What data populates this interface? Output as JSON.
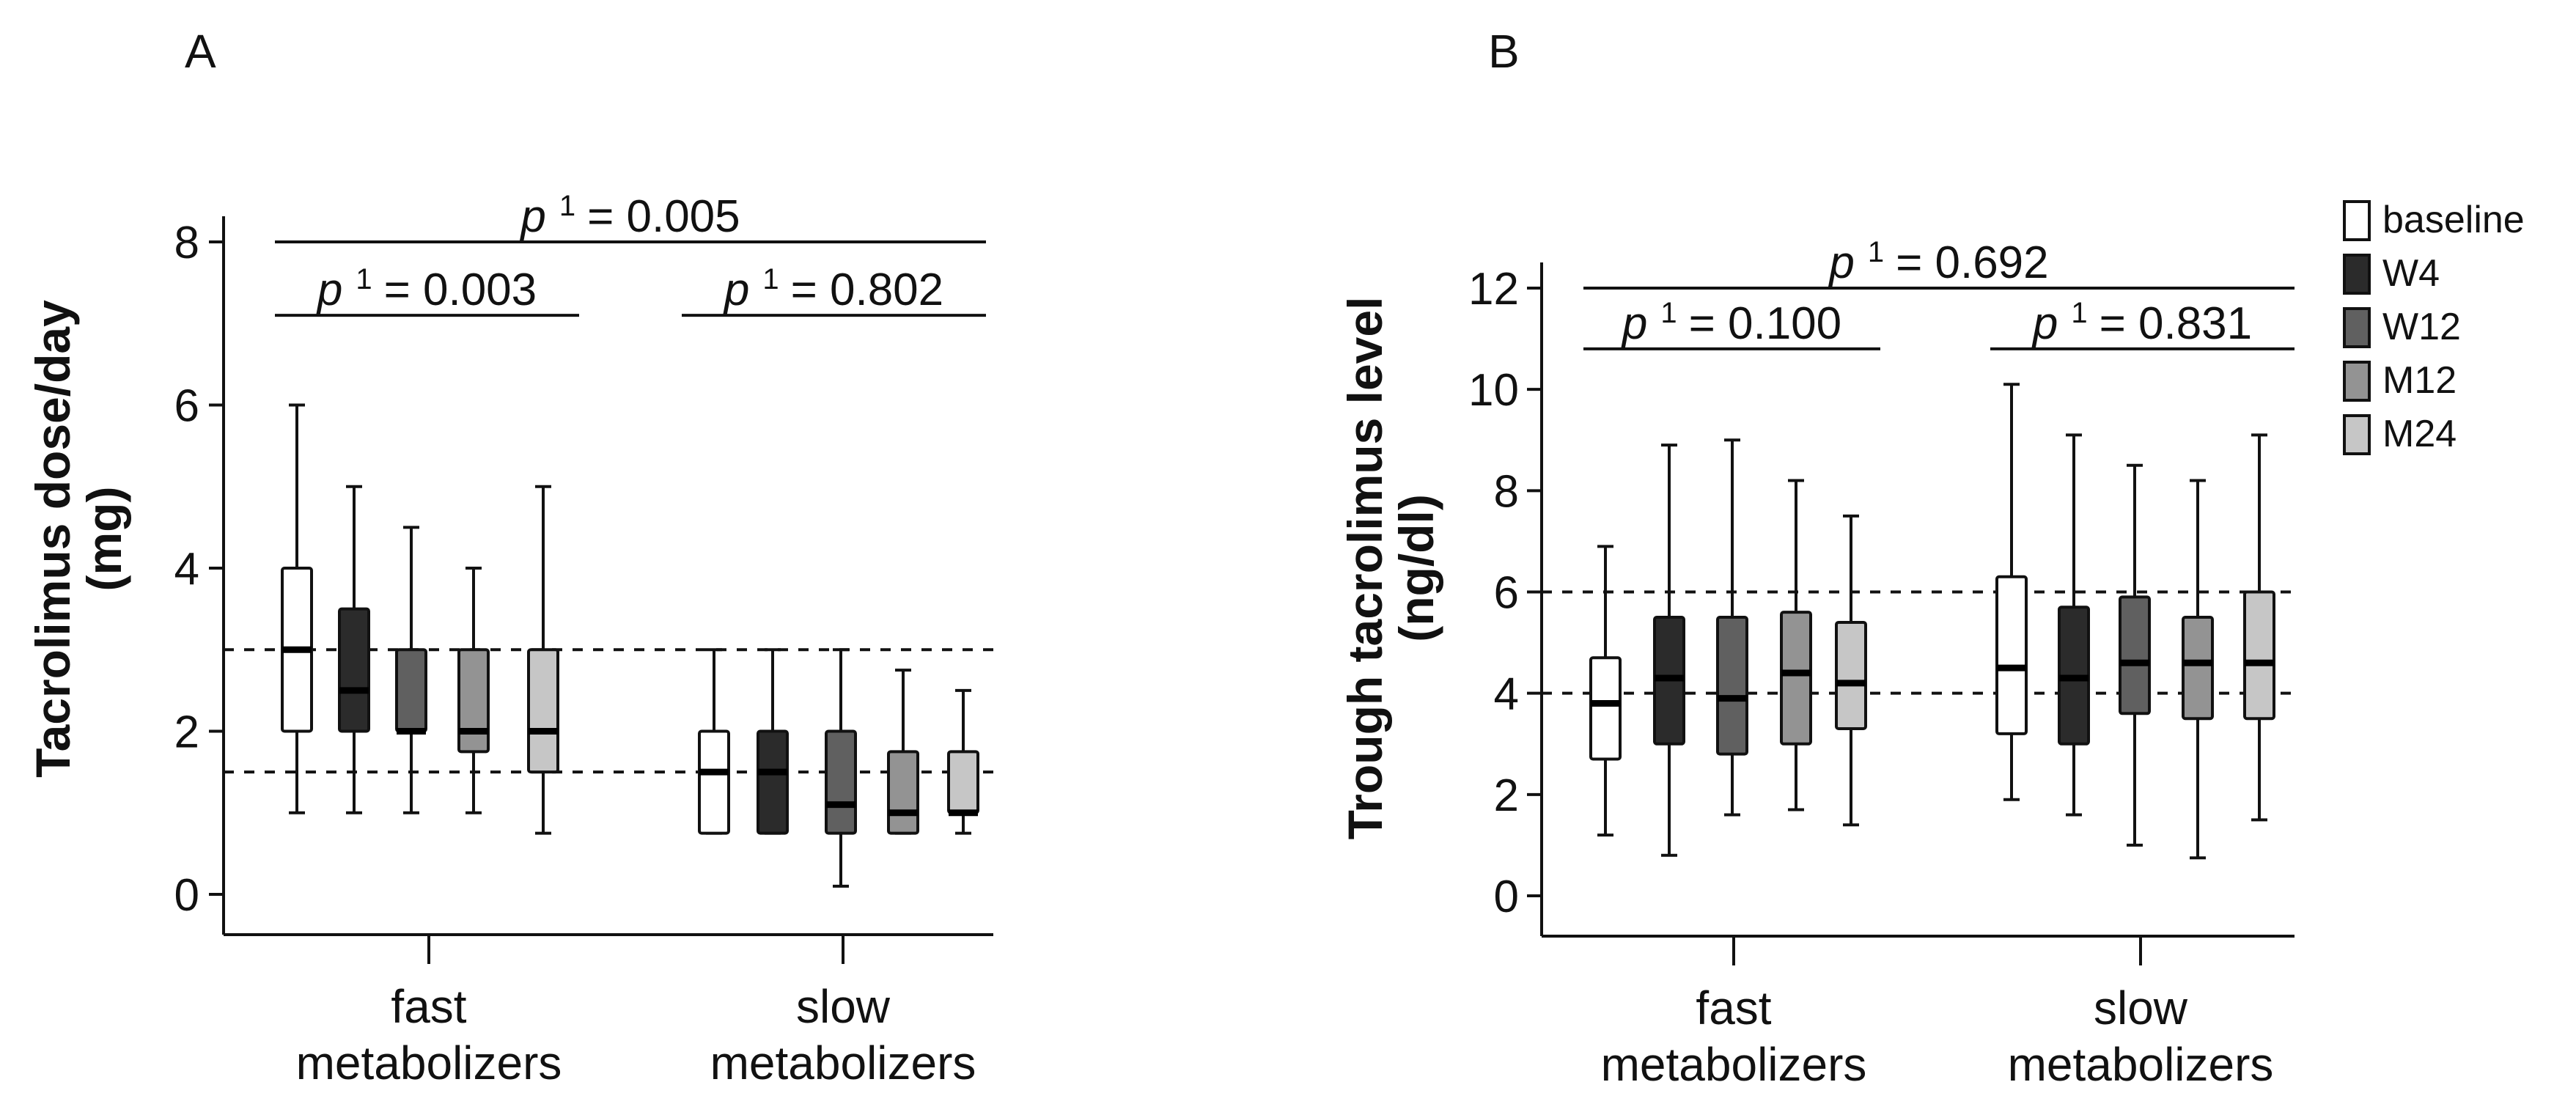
{
  "chart_data": [
    {
      "type": "box",
      "panel_label": "A",
      "ylabel_line1": "Tacrolimus dose/day",
      "ylabel_line2": "(mg)",
      "ylim": [
        0,
        8
      ],
      "yticks": [
        0,
        2,
        4,
        6,
        8
      ],
      "categories": [
        {
          "line1": "fast",
          "line2": "metabolizers"
        },
        {
          "line1": "slow",
          "line2": "metabolizers"
        }
      ],
      "reference_lines": [
        1.5,
        3
      ],
      "series_order": [
        "baseline",
        "W4",
        "W12",
        "M12",
        "M24"
      ],
      "boxes": [
        [
          {
            "series": "baseline",
            "min": 1.0,
            "q1": 2.0,
            "median": 3.0,
            "q3": 4.0,
            "max": 6.0
          },
          {
            "series": "W4",
            "min": 1.0,
            "q1": 2.0,
            "median": 2.5,
            "q3": 3.5,
            "max": 5.0
          },
          {
            "series": "W12",
            "min": 1.0,
            "q1": 2.0,
            "median": 2.0,
            "q3": 3.0,
            "max": 4.5
          },
          {
            "series": "M12",
            "min": 1.0,
            "q1": 1.75,
            "median": 2.0,
            "q3": 3.0,
            "max": 4.0
          },
          {
            "series": "M24",
            "min": 0.75,
            "q1": 1.5,
            "median": 2.0,
            "q3": 3.0,
            "max": 5.0
          }
        ],
        [
          {
            "series": "baseline",
            "min": 0.75,
            "q1": 0.75,
            "median": 1.5,
            "q3": 2.0,
            "max": 3.0
          },
          {
            "series": "W4",
            "min": 0.75,
            "q1": 0.75,
            "median": 1.5,
            "q3": 2.0,
            "max": 3.0
          },
          {
            "series": "W12",
            "min": 0.1,
            "q1": 0.75,
            "median": 1.1,
            "q3": 2.0,
            "max": 3.0
          },
          {
            "series": "M12",
            "min": 0.75,
            "q1": 0.75,
            "median": 1.0,
            "q3": 1.75,
            "max": 2.75
          },
          {
            "series": "M24",
            "min": 0.75,
            "q1": 1.0,
            "median": 1.0,
            "q3": 1.75,
            "max": 2.5
          }
        ]
      ],
      "significance": [
        {
          "scope": "overall",
          "p_symbol": "p",
          "superscript": "1",
          "value_text": "= 0.005",
          "level": 8
        },
        {
          "scope": "fast",
          "p_symbol": "p",
          "superscript": "1",
          "value_text": "= 0.003",
          "level": 7.1
        },
        {
          "scope": "slow",
          "p_symbol": "p",
          "superscript": "1",
          "value_text": "= 0.802",
          "level": 7.1
        }
      ]
    },
    {
      "type": "box",
      "panel_label": "B",
      "ylabel_line1": "Trough tacrolimus level",
      "ylabel_line2": "(ng/dl)",
      "ylim": [
        0,
        12
      ],
      "yticks": [
        0,
        2,
        4,
        6,
        8,
        10,
        12
      ],
      "categories": [
        {
          "line1": "fast",
          "line2": "metabolizers"
        },
        {
          "line1": "slow",
          "line2": "metabolizers"
        }
      ],
      "reference_lines": [
        4,
        6
      ],
      "series_order": [
        "baseline",
        "W4",
        "W12",
        "M12",
        "M24"
      ],
      "boxes": [
        [
          {
            "series": "baseline",
            "min": 1.2,
            "q1": 2.7,
            "median": 3.8,
            "q3": 4.7,
            "max": 6.9
          },
          {
            "series": "W4",
            "min": 0.8,
            "q1": 3.0,
            "median": 4.3,
            "q3": 5.5,
            "max": 8.9
          },
          {
            "series": "W12",
            "min": 1.6,
            "q1": 2.8,
            "median": 3.9,
            "q3": 5.5,
            "max": 9.0
          },
          {
            "series": "M12",
            "min": 1.7,
            "q1": 3.0,
            "median": 4.4,
            "q3": 5.6,
            "max": 8.2
          },
          {
            "series": "M24",
            "min": 1.4,
            "q1": 3.3,
            "median": 4.2,
            "q3": 5.4,
            "max": 7.5
          }
        ],
        [
          {
            "series": "baseline",
            "min": 1.9,
            "q1": 3.2,
            "median": 4.5,
            "q3": 6.3,
            "max": 10.1
          },
          {
            "series": "W4",
            "min": 1.6,
            "q1": 3.0,
            "median": 4.3,
            "q3": 5.7,
            "max": 9.1
          },
          {
            "series": "W12",
            "min": 1.0,
            "q1": 3.6,
            "median": 4.6,
            "q3": 5.9,
            "max": 8.5
          },
          {
            "series": "M12",
            "min": 0.75,
            "q1": 3.5,
            "median": 4.6,
            "q3": 5.5,
            "max": 8.2
          },
          {
            "series": "M24",
            "min": 1.5,
            "q1": 3.5,
            "median": 4.6,
            "q3": 6.0,
            "max": 9.1
          }
        ]
      ],
      "significance": [
        {
          "scope": "overall",
          "p_symbol": "p",
          "superscript": "1",
          "value_text": "= 0.692",
          "level": 12
        },
        {
          "scope": "fast",
          "p_symbol": "p",
          "superscript": "1",
          "value_text": "= 0.100",
          "level": 10.8
        },
        {
          "scope": "slow",
          "p_symbol": "p",
          "superscript": "1",
          "value_text": "= 0.831",
          "level": 10.8
        }
      ]
    }
  ],
  "legend": {
    "position": "right",
    "items": [
      {
        "label": "baseline",
        "color": "#ffffff"
      },
      {
        "label": "W4",
        "color": "#2b2b2b"
      },
      {
        "label": "W12",
        "color": "#606060"
      },
      {
        "label": "M12",
        "color": "#939393"
      },
      {
        "label": "M24",
        "color": "#c6c6c6"
      }
    ]
  }
}
